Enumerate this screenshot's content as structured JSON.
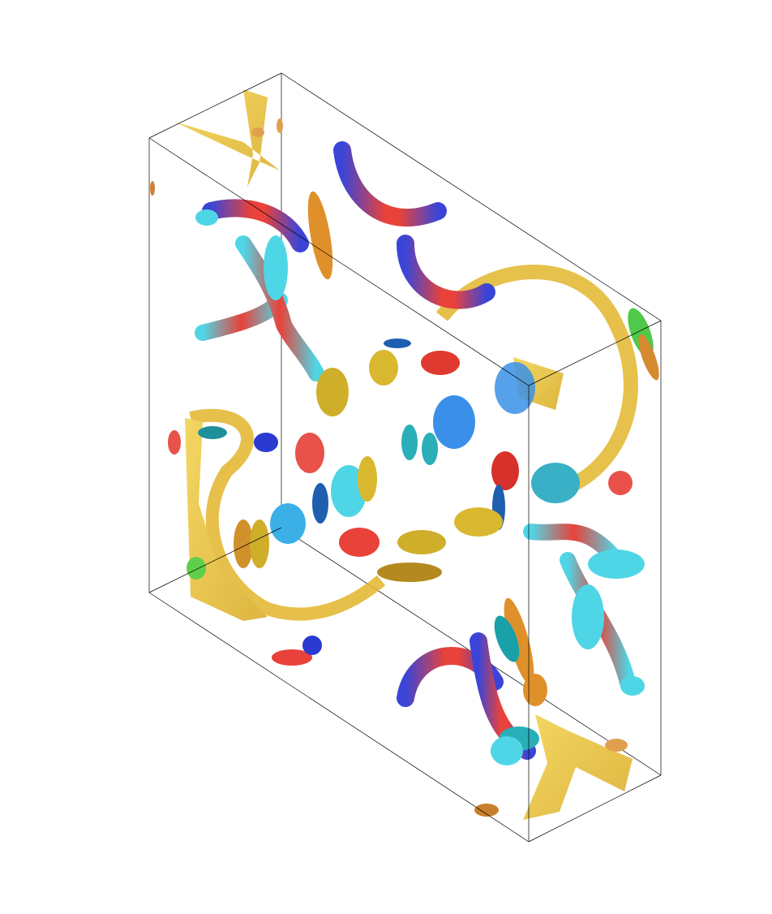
{
  "scene": {
    "description_name": "isosurface-render",
    "background_color": "#ffffff",
    "box_line_color": "#000000",
    "palette": {
      "gold": "#e9c23a",
      "orange": "#e0902a",
      "red": "#e8423a",
      "blue": "#3a45d8",
      "cyan": "#4fd6e6",
      "teal": "#2aaeb8",
      "green": "#4fc94a",
      "mid_blue": "#3a90e8"
    }
  }
}
